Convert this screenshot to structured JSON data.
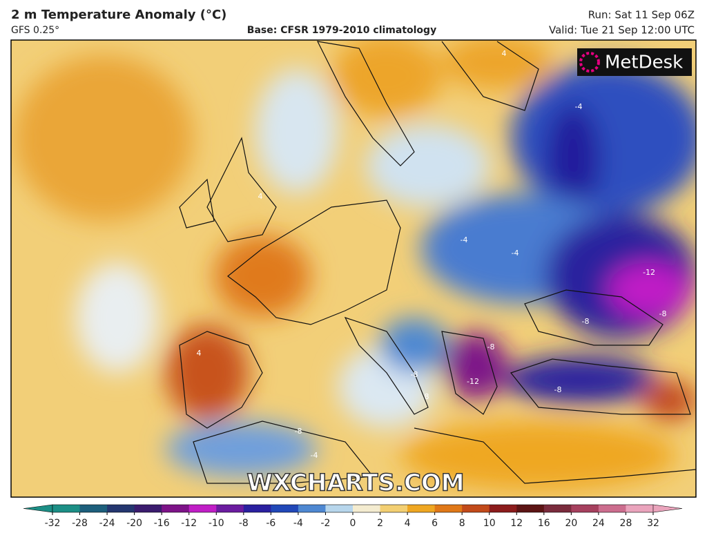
{
  "header": {
    "title": "2 m Temperature Anomaly (°C)",
    "model": "GFS 0.25°",
    "base": "Base: CFSR 1979-2010 climatology",
    "run": "Run: Sat 11 Sep 06Z",
    "valid": "Valid: Tue 21 Sep 12:00 UTC"
  },
  "map": {
    "logo": "MetDesk",
    "watermark": "WXCHARTS.COM",
    "contour_labels": [
      "-12",
      "-12",
      "-8",
      "-8",
      "-8",
      "-8",
      "-8",
      "-8",
      "-4",
      "-4",
      "-4",
      "-4",
      "4",
      "4",
      "4",
      "8"
    ]
  },
  "colorbar": {
    "ticks": [
      -32,
      -28,
      -24,
      -20,
      -16,
      -12,
      -10,
      -8,
      -6,
      -4,
      -2,
      0,
      2,
      4,
      6,
      8,
      10,
      12,
      16,
      20,
      24,
      28,
      32
    ],
    "colors": [
      "#1c8f86",
      "#1d5f7c",
      "#24366f",
      "#3b1c6e",
      "#7d1388",
      "#c01ec6",
      "#6b1ca0",
      "#2a20a0",
      "#2148b8",
      "#4e88d2",
      "#b7d6ec",
      "#f4ecd0",
      "#f3cf72",
      "#efa722",
      "#e07818",
      "#c24a1a",
      "#8c1c1c",
      "#5c1414",
      "#7a2b3c",
      "#a6405e",
      "#cc6d8e",
      "#eaa4bc"
    ]
  }
}
